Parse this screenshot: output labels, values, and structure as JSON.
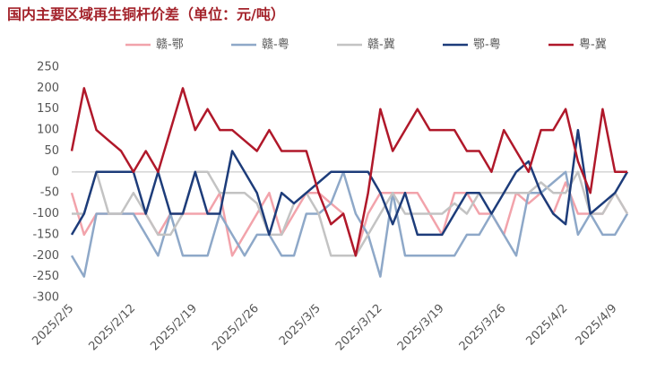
{
  "chart_data": {
    "type": "line",
    "title": "国内主要区域再生铜杆价差（单位：元/吨）",
    "categories": [
      "2025/2/5",
      null,
      null,
      null,
      null,
      "2025/2/12",
      null,
      null,
      null,
      null,
      "2025/2/19",
      null,
      null,
      null,
      null,
      "2025/2/26",
      null,
      null,
      null,
      null,
      "2025/3/5",
      null,
      null,
      null,
      null,
      "2025/3/12",
      null,
      null,
      null,
      null,
      "2025/3/19",
      null,
      null,
      null,
      null,
      "2025/3/26",
      null,
      null,
      null,
      null,
      "2025/4/2",
      null,
      null,
      null,
      "2025/4/9",
      null
    ],
    "series": [
      {
        "name": "赣-鄂",
        "color": "#f2a3ab",
        "values": [
          -50,
          -150,
          -100,
          -100,
          -100,
          -100,
          -100,
          -150,
          -100,
          -100,
          -100,
          -100,
          -50,
          -200,
          -150,
          -100,
          -50,
          -150,
          -100,
          -50,
          -50,
          -75,
          -100,
          -200,
          -100,
          -50,
          -50,
          -50,
          -50,
          -100,
          -150,
          -50,
          -50,
          -100,
          -100,
          -150,
          -50,
          -75,
          -50,
          -100,
          -25,
          -100,
          -100,
          -100,
          -50,
          -100
        ]
      },
      {
        "name": "赣-粤",
        "color": "#8ea8c8",
        "values": [
          -200,
          -250,
          -100,
          -100,
          -100,
          -100,
          -150,
          -200,
          -100,
          -200,
          -200,
          -200,
          -100,
          -150,
          -200,
          -150,
          -150,
          -200,
          -200,
          -100,
          -100,
          -75,
          0,
          -100,
          -150,
          -250,
          -50,
          -200,
          -200,
          -200,
          -200,
          -200,
          -150,
          -150,
          -100,
          -150,
          -200,
          -50,
          -50,
          -25,
          0,
          -150,
          -100,
          -150,
          -150,
          -100
        ]
      },
      {
        "name": "赣-冀",
        "color": "#c3c3c3",
        "values": [
          -100,
          -100,
          0,
          -100,
          -100,
          -50,
          -100,
          -150,
          -150,
          -100,
          0,
          0,
          -50,
          -50,
          -50,
          -75,
          -150,
          -150,
          -75,
          -50,
          -100,
          -200,
          -200,
          -200,
          -150,
          -100,
          -50,
          -100,
          -100,
          -100,
          -100,
          -75,
          -100,
          -50,
          -50,
          -50,
          -50,
          -50,
          -25,
          -50,
          -50,
          0,
          -100,
          -100,
          -50,
          -100
        ]
      },
      {
        "name": "鄂-粤",
        "color": "#1d3c7a",
        "values": [
          -150,
          -100,
          0,
          0,
          0,
          0,
          -100,
          0,
          -100,
          -100,
          0,
          -100,
          -100,
          50,
          0,
          -50,
          -150,
          -50,
          -75,
          -50,
          -25,
          0,
          0,
          0,
          0,
          -50,
          -125,
          -50,
          -150,
          -150,
          -150,
          -100,
          -50,
          -50,
          -100,
          -50,
          0,
          25,
          -50,
          -100,
          -125,
          100,
          -100,
          -75,
          -50,
          0
        ]
      },
      {
        "name": "粤-冀",
        "color": "#b0182a",
        "values": [
          50,
          200,
          100,
          75,
          50,
          0,
          50,
          0,
          100,
          200,
          100,
          150,
          100,
          100,
          75,
          50,
          100,
          50,
          50,
          50,
          -50,
          -125,
          -100,
          -200,
          -50,
          150,
          50,
          100,
          150,
          100,
          100,
          100,
          50,
          50,
          0,
          100,
          50,
          0,
          100,
          100,
          150,
          25,
          -50,
          150,
          0,
          0
        ]
      }
    ],
    "ylim": [
      -300,
      250
    ],
    "yticks": [
      -300,
      -250,
      -200,
      -150,
      -100,
      -50,
      0,
      50,
      100,
      150,
      200,
      250
    ]
  }
}
